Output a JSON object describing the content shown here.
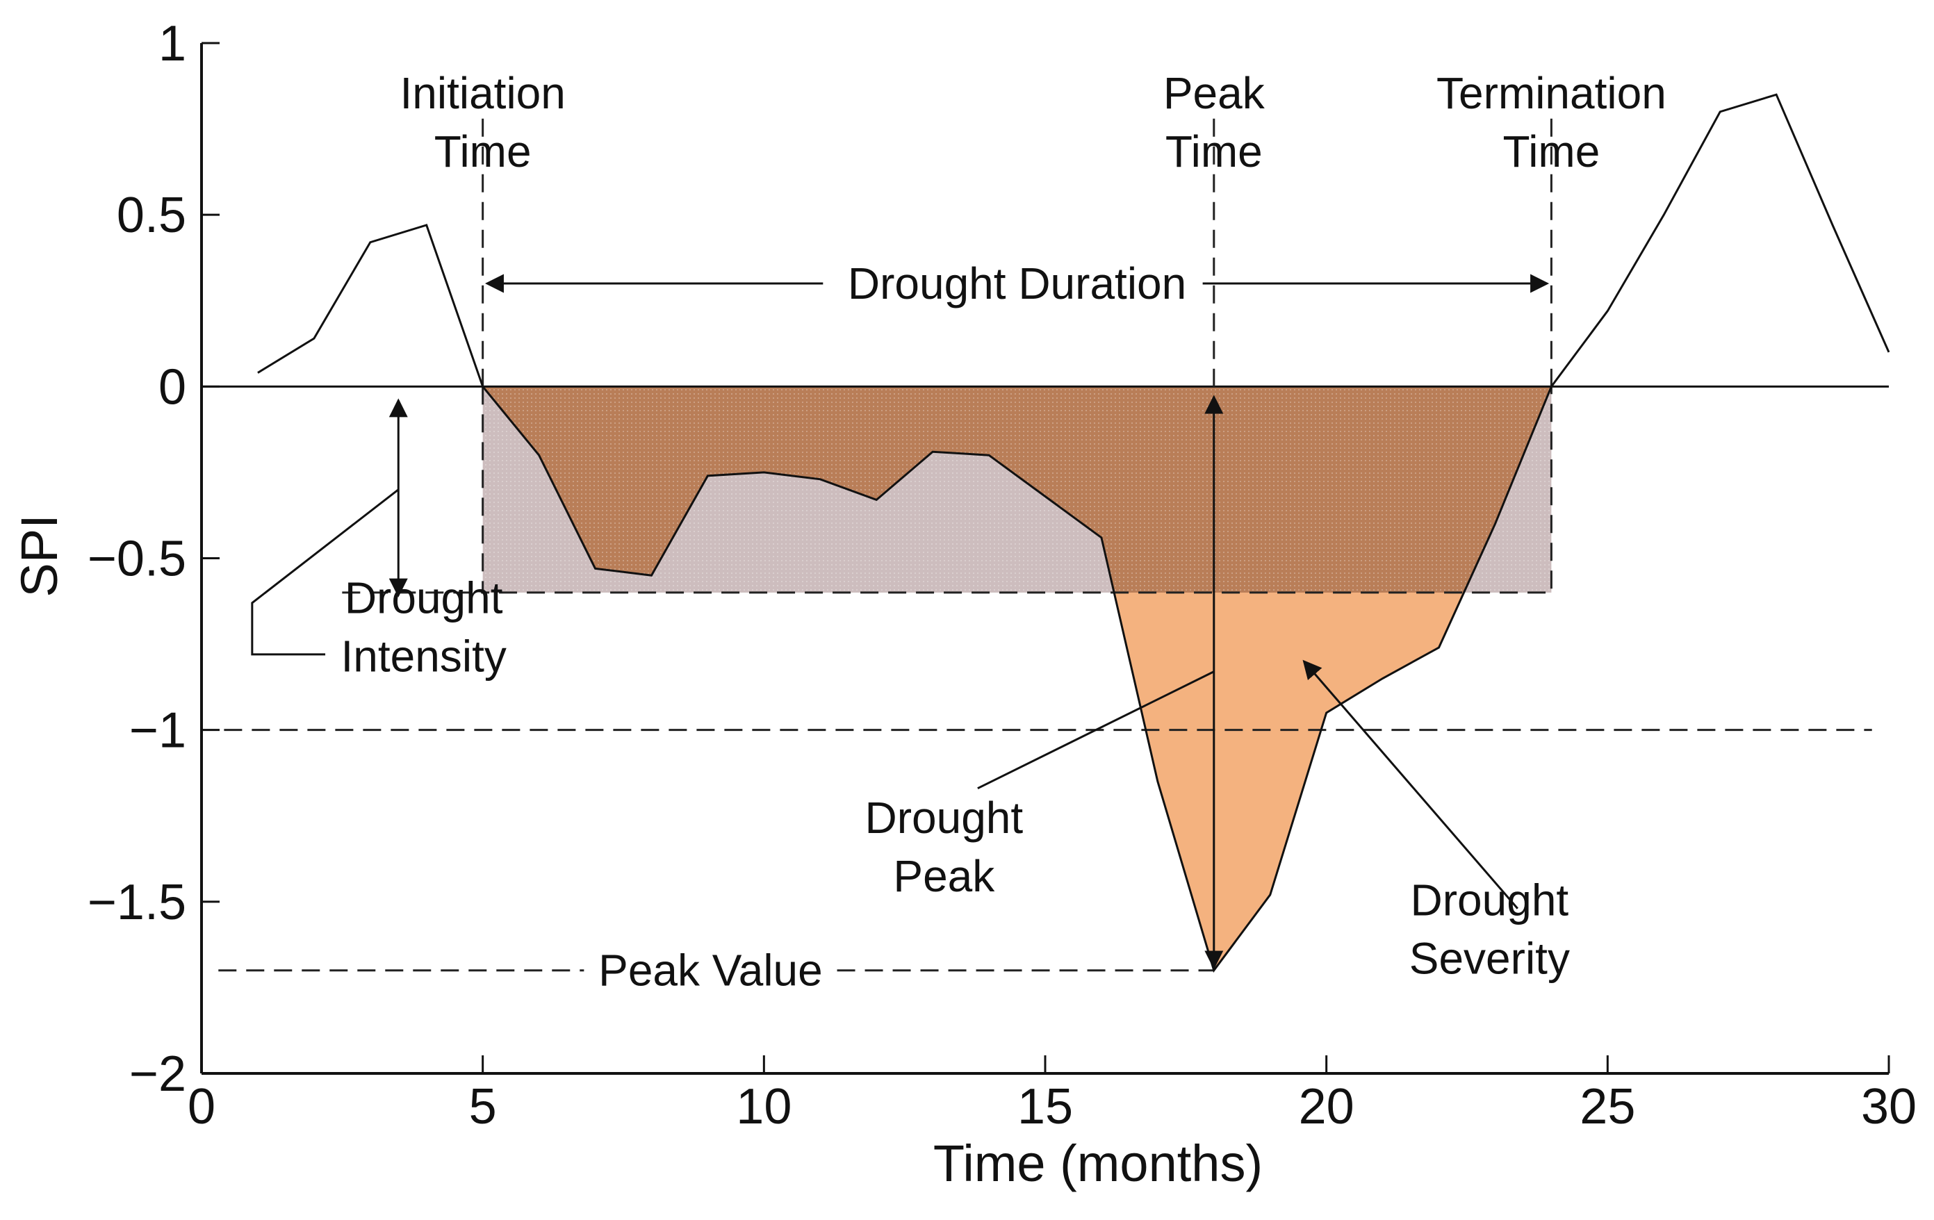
{
  "chart_data": {
    "type": "line",
    "xlabel": "Time (months)",
    "ylabel": "SPI",
    "xlim": [
      0,
      30
    ],
    "ylim": [
      -2,
      1
    ],
    "x_ticks": [
      "0",
      "5",
      "10",
      "15",
      "20",
      "25",
      "30"
    ],
    "y_ticks": [
      "1",
      "0.5",
      "0",
      "−0.5",
      "−1",
      "−1.5",
      "−2"
    ],
    "x_tick_values": [
      0,
      5,
      10,
      15,
      20,
      25,
      30
    ],
    "y_tick_values": [
      1,
      0.5,
      0,
      -0.5,
      -1,
      -1.5,
      -2
    ],
    "grid": false,
    "series": [
      {
        "x": [
          1,
          2,
          3,
          4,
          5,
          6,
          7,
          8,
          9,
          10,
          11,
          12,
          13,
          14,
          15,
          16,
          17,
          18,
          19,
          20,
          21,
          22,
          23,
          24,
          25,
          26,
          27,
          28,
          29,
          30
        ],
        "values": [
          0.04,
          0.14,
          0.42,
          0.47,
          0.0,
          -0.2,
          -0.53,
          -0.55,
          -0.26,
          -0.25,
          -0.27,
          -0.33,
          -0.19,
          -0.2,
          -0.32,
          -0.44,
          -1.15,
          -1.7,
          -1.48,
          -0.95,
          -0.85,
          -0.76,
          -0.4,
          0.0,
          0.22,
          0.5,
          0.8,
          0.85,
          0.47,
          0.1
        ]
      }
    ],
    "reference_lines": {
      "zero_line": 0,
      "drought_intensity": -0.6,
      "threshold": -1,
      "peak_value": -1.7
    },
    "event": {
      "initiation_time": 5,
      "peak_time": 18,
      "termination_time": 24
    },
    "colors": {
      "line": "#111111",
      "severity_fill": "#f4b27f",
      "above_intensity_fill": "#b97e58",
      "intensity_box_fill": "#cdbdbe"
    },
    "annotations": {
      "initiation": [
        "Initiation",
        "Time"
      ],
      "peak_time": [
        "Peak",
        "Time"
      ],
      "termination": [
        "Termination",
        "Time"
      ],
      "duration": "Drought Duration",
      "intensity": [
        "Drought",
        "Intensity"
      ],
      "peak": [
        "Drought",
        "Peak"
      ],
      "severity": [
        "Drought",
        "Severity"
      ],
      "peak_value": "Peak Value"
    }
  }
}
